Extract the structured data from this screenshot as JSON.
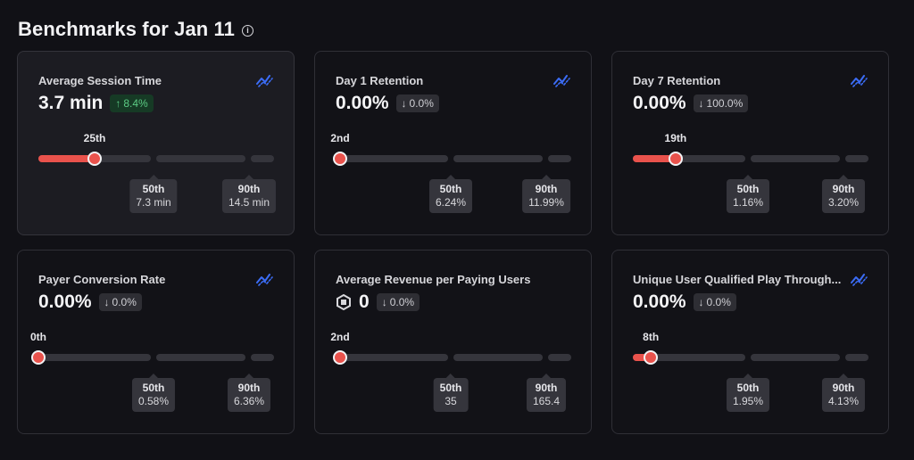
{
  "header": {
    "title": "Benchmarks for Jan 11"
  },
  "colors": {
    "accent": "#e9524c",
    "up": "#5ccb84",
    "trend_icon": "#3b6cf5"
  },
  "cards": [
    {
      "title": "Average Session Time",
      "value": "3.7 min",
      "delta": "8.4%",
      "direction": "up",
      "show_trend": true,
      "percentile_label": "25th",
      "percentile": 0.25,
      "p50_label": "50th",
      "p50_value": "7.3 min",
      "p90_label": "90th",
      "p90_value": "14.5 min"
    },
    {
      "title": "Day 1 Retention",
      "value": "0.00%",
      "delta": "0.0%",
      "direction": "down",
      "show_trend": true,
      "percentile_label": "2nd",
      "percentile": 0.02,
      "p50_label": "50th",
      "p50_value": "6.24%",
      "p90_label": "90th",
      "p90_value": "11.99%"
    },
    {
      "title": "Day 7 Retention",
      "value": "0.00%",
      "delta": "100.0%",
      "direction": "down",
      "show_trend": true,
      "percentile_label": "19th",
      "percentile": 0.19,
      "p50_label": "50th",
      "p50_value": "1.16%",
      "p90_label": "90th",
      "p90_value": "3.20%"
    },
    {
      "title": "Payer Conversion Rate",
      "value": "0.00%",
      "delta": "0.0%",
      "direction": "down",
      "show_trend": true,
      "percentile_label": "0th",
      "percentile": 0.0,
      "p50_label": "50th",
      "p50_value": "0.58%",
      "p90_label": "90th",
      "p90_value": "6.36%"
    },
    {
      "title": "Average Revenue per Paying Users",
      "value": "0",
      "value_icon": "robux-icon",
      "delta": "0.0%",
      "direction": "down",
      "show_trend": false,
      "percentile_label": "2nd",
      "percentile": 0.02,
      "p50_label": "50th",
      "p50_value": "35",
      "p90_label": "90th",
      "p90_value": "165.4"
    },
    {
      "title": "Unique User Qualified Play Through...",
      "value": "0.00%",
      "delta": "0.0%",
      "direction": "down",
      "show_trend": true,
      "percentile_label": "8th",
      "percentile": 0.08,
      "p50_label": "50th",
      "p50_value": "1.95%",
      "p90_label": "90th",
      "p90_value": "4.13%"
    }
  ]
}
